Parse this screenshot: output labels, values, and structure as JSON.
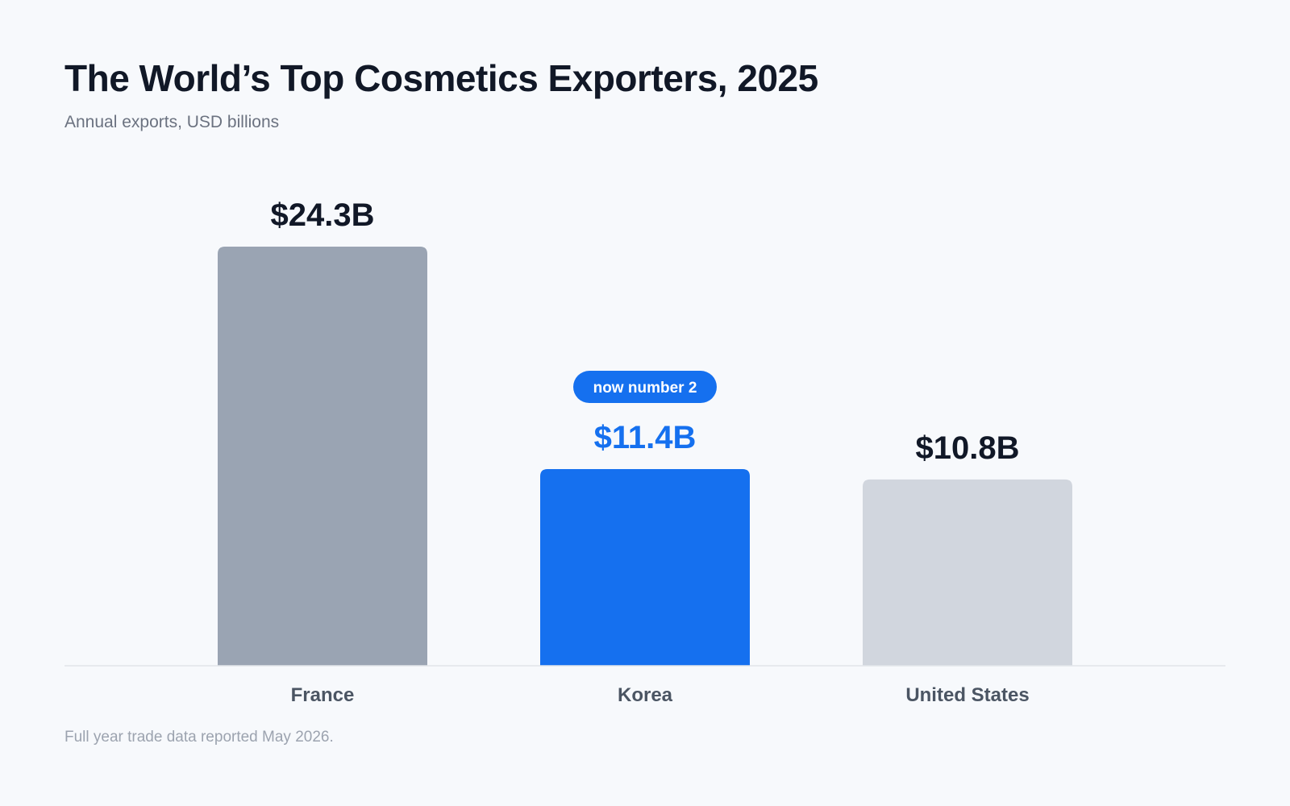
{
  "chart_data": {
    "type": "bar",
    "title": "The World’s Top Cosmetics Exporters, 2025",
    "subtitle": "Annual exports, USD billions",
    "categories": [
      "France",
      "Korea",
      "United States"
    ],
    "values": [
      24.3,
      11.4,
      10.8
    ],
    "value_labels": [
      "$24.3B",
      "$11.4B",
      "$10.8B"
    ],
    "bar_colors": [
      "#9aa4b3",
      "#1570ef",
      "#d1d6de"
    ],
    "value_label_colors": [
      "#111827",
      "#1570ef",
      "#111827"
    ],
    "highlight": {
      "category": "Korea",
      "badge_text": "now number 2",
      "badge_color": "#1570ef"
    },
    "ylim": [
      0,
      24.3
    ],
    "grid": false,
    "legend": "none",
    "note": "Full year trade data reported May 2026."
  }
}
